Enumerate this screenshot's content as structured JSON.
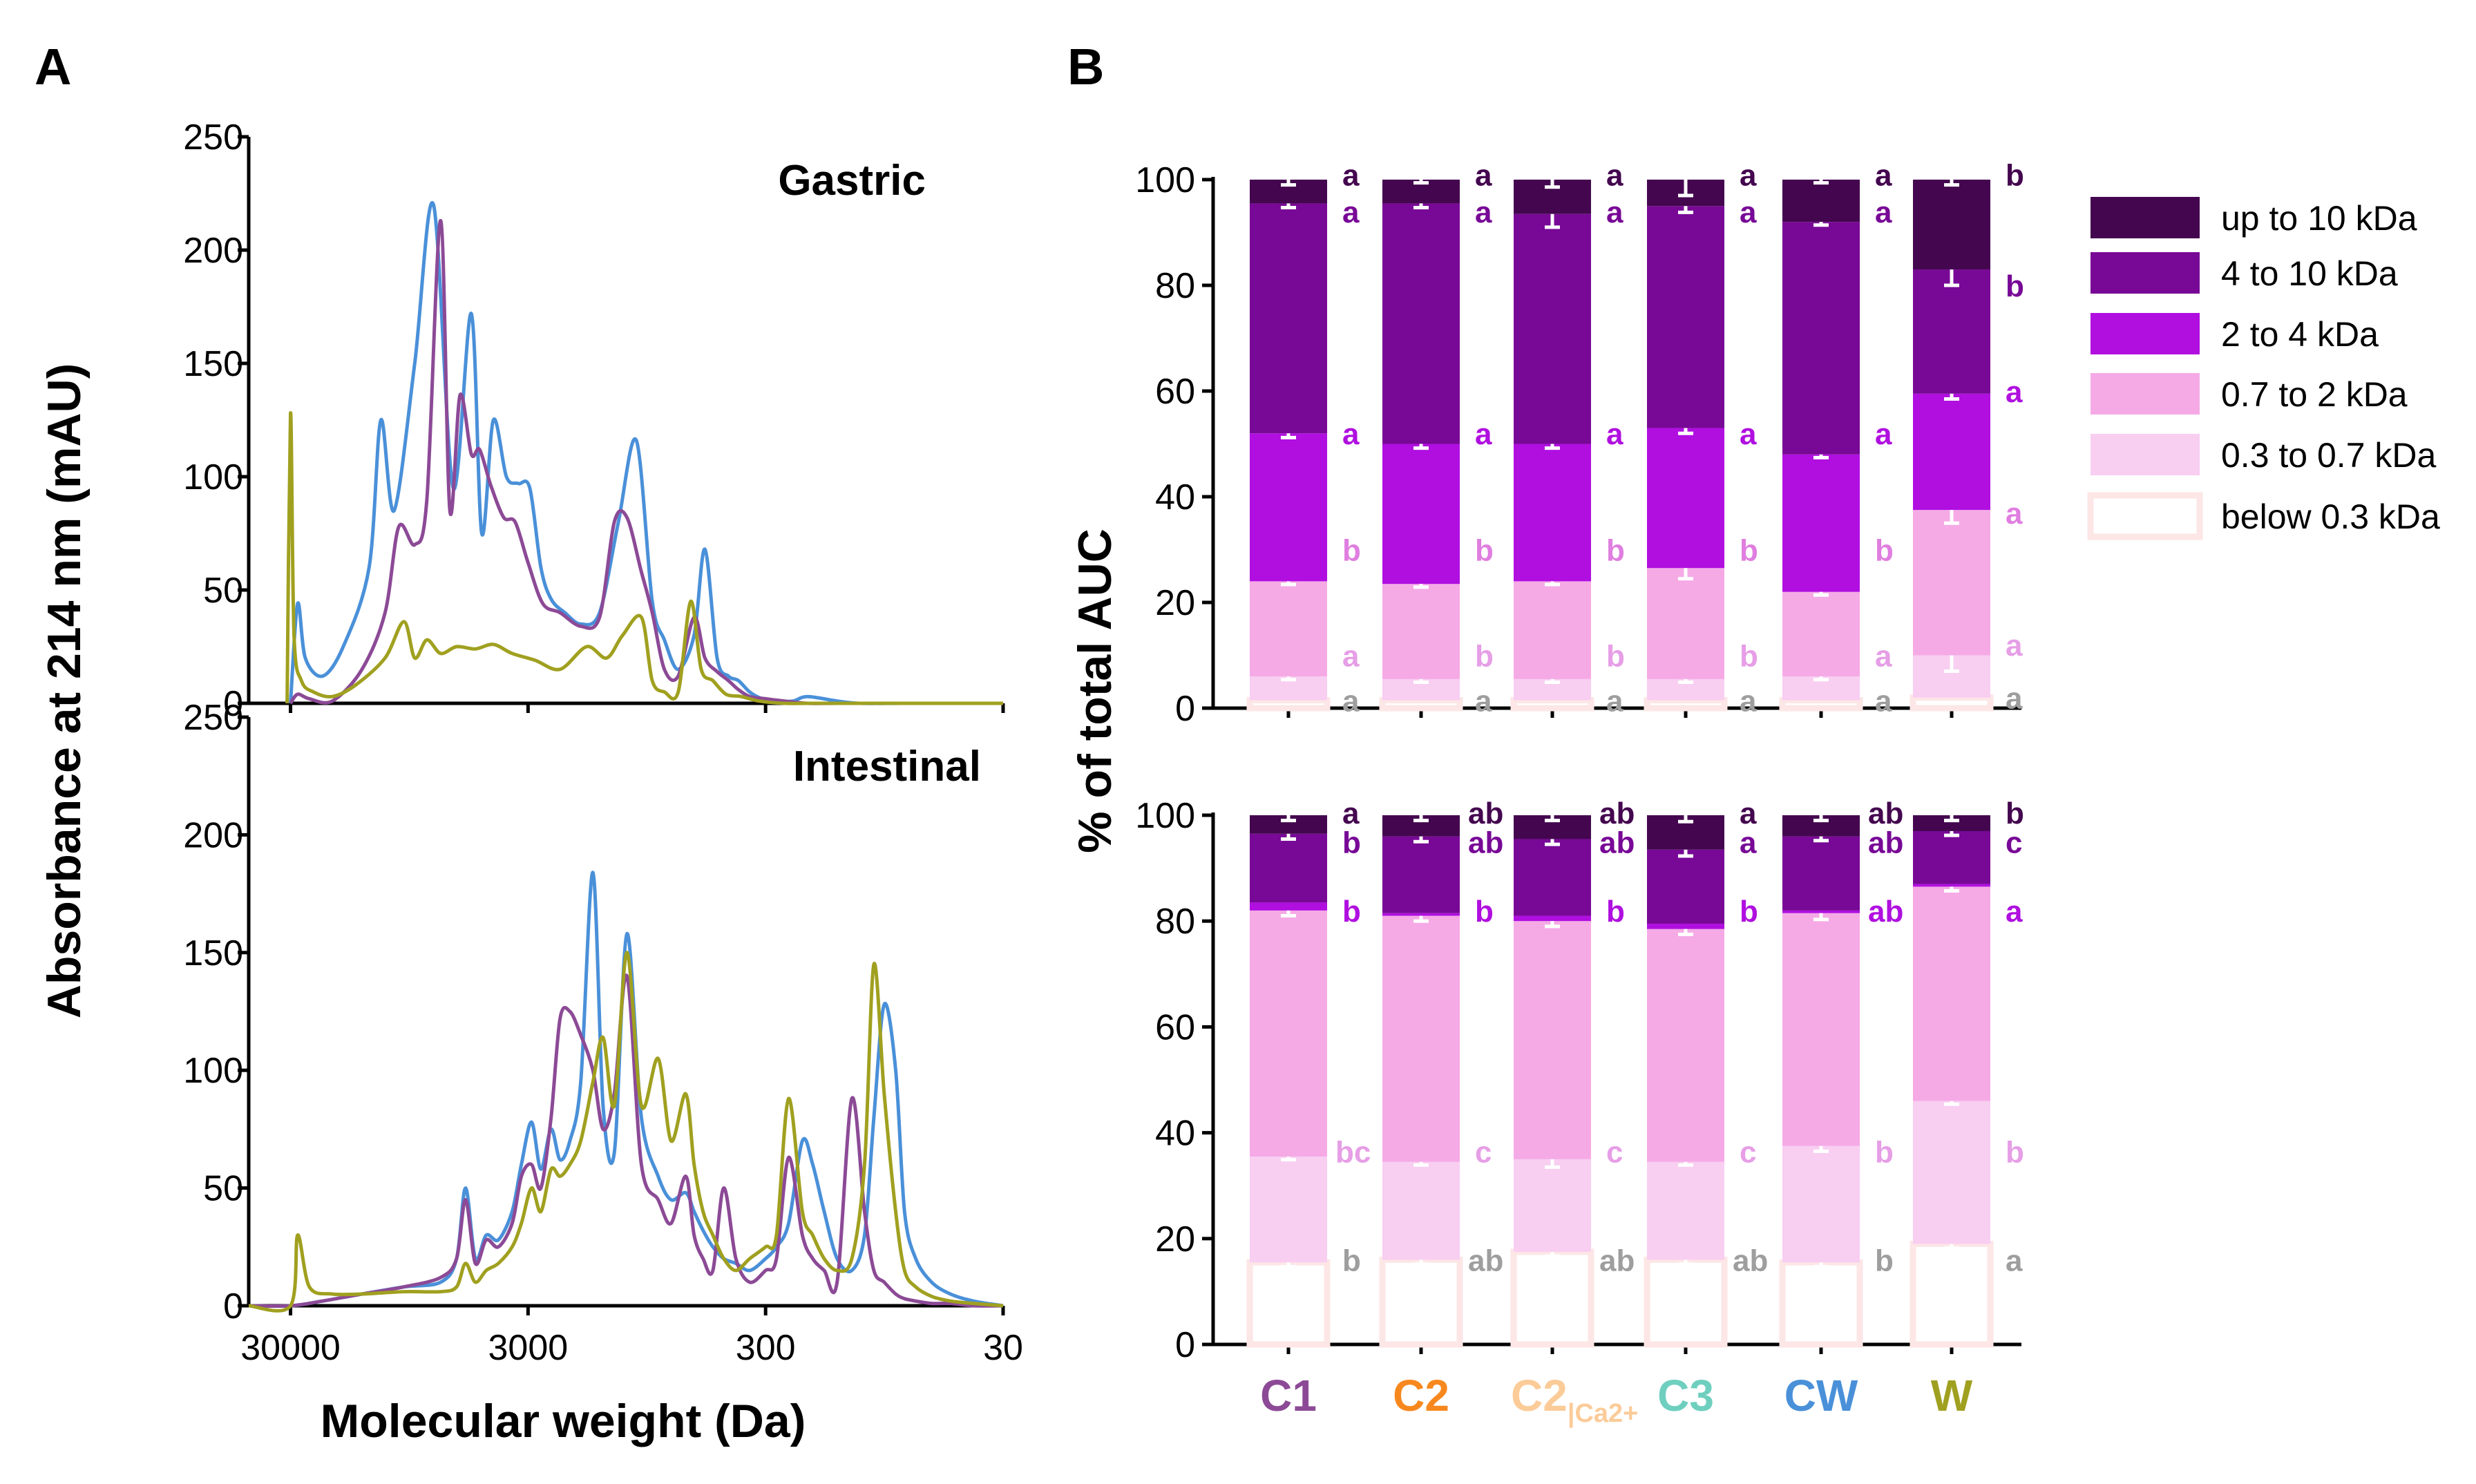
{
  "panels": {
    "a": "A",
    "b": "B"
  },
  "colors": {
    "C1": "#8c4a96",
    "C2": "#f7881e",
    "C2Ca": "#fbcb98",
    "C3": "#6fcfbf",
    "CW": "#4a90d9",
    "W": "#a0a020",
    "up10": "#44064f",
    "f4to10": "#780896",
    "f2to4": "#b00fe0",
    "f07to2": "#f5aae6",
    "f03to07": "#f8cef1",
    "below03": "#fde6e6",
    "sig_up10": "#44064f",
    "sig_4to10": "#780896",
    "sig_2to4": "#b00fe0",
    "sig_07to2": "#e07ee0",
    "sig_03to07": "#e69ee6",
    "sig_below": "#9e9e9e"
  },
  "chart_data": [
    {
      "type": "line",
      "title": "Gastric",
      "xlabel": "Molecular weight (Da)",
      "ylabel": "Absorbance at 214 nm (mAU)",
      "xscale": "log-reversed",
      "xlim": [
        45000,
        30
      ],
      "ylim": [
        0,
        250
      ],
      "yticks": [
        0,
        50,
        100,
        150,
        200,
        250
      ],
      "series": [
        {
          "name": "CW",
          "color_key": "CW",
          "x": [
            30000,
            28000,
            26000,
            22000,
            18000,
            14000,
            12500,
            11000,
            9000,
            7500,
            6200,
            5200,
            4700,
            4200,
            3700,
            3300,
            2950,
            2650,
            2400,
            2100,
            1800,
            1500,
            1250,
            1050,
            900,
            800,
            700,
            600,
            540,
            480,
            430,
            390,
            350,
            310,
            270,
            230,
            200,
            150,
            120,
            80,
            50,
            30
          ],
          "y": [
            0,
            44,
            20,
            12,
            25,
            60,
            125,
            85,
            150,
            220,
            95,
            172,
            75,
            125,
            100,
            97,
            95,
            60,
            46,
            40,
            35,
            40,
            80,
            116,
            45,
            28,
            15,
            30,
            68,
            20,
            12,
            10,
            5,
            2,
            1,
            1,
            3,
            1,
            0,
            0,
            0,
            0
          ]
        },
        {
          "name": "C1",
          "color_key": "C1",
          "x": [
            30000,
            28000,
            25000,
            20000,
            15000,
            12000,
            10500,
            9000,
            8000,
            7000,
            6400,
            5800,
            5200,
            4800,
            4300,
            3800,
            3400,
            3000,
            2600,
            2200,
            1800,
            1500,
            1300,
            1150,
            1000,
            900,
            800,
            700,
            600,
            540,
            480,
            430,
            390,
            350,
            300,
            250,
            200,
            150,
            100,
            50,
            30
          ],
          "y": [
            0,
            4,
            2,
            1,
            15,
            40,
            78,
            70,
            90,
            213,
            85,
            136,
            110,
            112,
            96,
            82,
            80,
            62,
            44,
            40,
            34,
            38,
            80,
            82,
            58,
            40,
            15,
            12,
            38,
            20,
            14,
            10,
            6,
            3,
            2,
            1,
            0,
            0,
            0,
            0,
            0
          ]
        },
        {
          "name": "W",
          "color_key": "W",
          "x": [
            31000,
            30000,
            29000,
            27000,
            24000,
            20000,
            16000,
            12000,
            10000,
            9000,
            8000,
            7000,
            6000,
            5000,
            4200,
            3500,
            2800,
            2200,
            1700,
            1400,
            1200,
            1000,
            900,
            800,
            700,
            620,
            560,
            500,
            440,
            380,
            320,
            250,
            200,
            150,
            100,
            50,
            30
          ],
          "y": [
            0,
            128,
            30,
            10,
            5,
            3,
            8,
            20,
            36,
            20,
            28,
            22,
            25,
            24,
            26,
            22,
            19,
            15,
            25,
            20,
            30,
            38,
            10,
            5,
            5,
            45,
            15,
            10,
            4,
            3,
            1,
            0,
            0,
            0,
            0,
            0,
            0
          ]
        }
      ]
    },
    {
      "type": "line",
      "title": "Intestinal",
      "xlabel": "Molecular weight (Da)",
      "ylabel": "Absorbance at 214 nm (mAU)",
      "xscale": "log-reversed",
      "xlim": [
        45000,
        30
      ],
      "ylim": [
        0,
        250
      ],
      "yticks": [
        0,
        50,
        100,
        150,
        200,
        250
      ],
      "xticks": [
        30000,
        3000,
        300,
        30
      ],
      "xticklabels": [
        "30000",
        "3000",
        "300",
        "30"
      ],
      "series": [
        {
          "name": "CW",
          "color_key": "CW",
          "x": [
            45000,
            30000,
            22000,
            15000,
            10000,
            7000,
            6000,
            5500,
            5000,
            4500,
            4000,
            3500,
            3200,
            2900,
            2650,
            2400,
            2200,
            2000,
            1800,
            1600,
            1450,
            1300,
            1150,
            1000,
            850,
            750,
            650,
            600,
            550,
            500,
            450,
            400,
            350,
            300,
            270,
            240,
            210,
            190,
            170,
            150,
            130,
            115,
            105,
            95,
            85,
            78,
            70,
            60,
            50,
            40,
            30
          ],
          "y": [
            0,
            0,
            2,
            5,
            8,
            10,
            20,
            50,
            20,
            30,
            28,
            40,
            60,
            78,
            58,
            75,
            62,
            70,
            95,
            184,
            85,
            65,
            158,
            80,
            55,
            45,
            48,
            40,
            32,
            25,
            20,
            18,
            15,
            20,
            25,
            35,
            70,
            60,
            40,
            20,
            15,
            30,
            80,
            128,
            100,
            40,
            20,
            10,
            5,
            2,
            0
          ]
        },
        {
          "name": "C1",
          "color_key": "C1",
          "x": [
            45000,
            30000,
            22000,
            15000,
            10000,
            7000,
            6000,
            5500,
            5000,
            4500,
            4000,
            3500,
            3200,
            2900,
            2650,
            2400,
            2200,
            2000,
            1800,
            1600,
            1450,
            1300,
            1150,
            1000,
            850,
            750,
            650,
            600,
            550,
            500,
            450,
            400,
            350,
            300,
            270,
            240,
            210,
            190,
            170,
            150,
            130,
            115,
            105,
            95,
            85,
            78,
            70,
            60,
            50,
            40,
            30
          ],
          "y": [
            0,
            0,
            2,
            5,
            8,
            12,
            20,
            45,
            18,
            28,
            25,
            35,
            55,
            60,
            50,
            80,
            122,
            125,
            115,
            100,
            75,
            90,
            140,
            60,
            45,
            35,
            55,
            30,
            20,
            15,
            50,
            20,
            10,
            15,
            20,
            63,
            30,
            20,
            15,
            10,
            88,
            40,
            15,
            10,
            5,
            3,
            2,
            1,
            1,
            0,
            0
          ]
        },
        {
          "name": "W",
          "color_key": "W",
          "x": [
            45000,
            30000,
            28000,
            25000,
            20000,
            15000,
            10000,
            7000,
            6000,
            5500,
            5000,
            4500,
            4000,
            3500,
            3200,
            2900,
            2650,
            2400,
            2200,
            2000,
            1800,
            1600,
            1450,
            1300,
            1150,
            1000,
            850,
            750,
            650,
            600,
            550,
            500,
            450,
            400,
            350,
            300,
            270,
            240,
            210,
            190,
            170,
            150,
            130,
            115,
            105,
            95,
            85,
            78,
            70,
            60,
            50,
            40,
            30
          ],
          "y": [
            0,
            0,
            30,
            8,
            5,
            5,
            6,
            6,
            8,
            18,
            10,
            15,
            18,
            25,
            35,
            50,
            40,
            58,
            55,
            60,
            70,
            95,
            114,
            85,
            150,
            85,
            105,
            70,
            90,
            60,
            40,
            30,
            20,
            15,
            20,
            25,
            30,
            88,
            40,
            30,
            20,
            15,
            20,
            60,
            145,
            90,
            40,
            15,
            8,
            4,
            2,
            1,
            0
          ]
        }
      ]
    },
    {
      "type": "stacked-bar",
      "ylabel": "% of total AUC",
      "ylim": [
        0,
        100
      ],
      "yticks": [
        0,
        20,
        40,
        60,
        80,
        100
      ],
      "categories": [
        "C1",
        "C2",
        "C2Ca",
        "C3",
        "CW",
        "W"
      ],
      "category_labels": [
        {
          "main": "C1",
          "sub": "",
          "color_key": "C1"
        },
        {
          "main": "C2",
          "sub": "",
          "color_key": "C2"
        },
        {
          "main": "C2",
          "sub": "|Ca2+",
          "color_key": "C2Ca"
        },
        {
          "main": "C3",
          "sub": "",
          "color_key": "C3"
        },
        {
          "main": "CW",
          "sub": "",
          "color_key": "CW"
        },
        {
          "main": "W",
          "sub": "",
          "color_key": "W"
        }
      ],
      "legend": [
        {
          "label": "up to 10 kDa",
          "color_key": "up10"
        },
        {
          "label": "4 to 10 kDa",
          "color_key": "f4to10"
        },
        {
          "label": "2 to 4 kDa",
          "color_key": "f2to4"
        },
        {
          "label": "0.7 to 2 kDa",
          "color_key": "f07to2"
        },
        {
          "label": "0.3 to 0.7 kDa",
          "color_key": "f03to07"
        },
        {
          "label": "below 0.3 kDa",
          "color_key": "below03"
        }
      ],
      "stack_tops": [
        [
          1.5,
          6,
          24,
          52,
          95.5,
          100
        ],
        [
          1.5,
          5.5,
          23.5,
          50,
          95.5,
          100
        ],
        [
          1.5,
          5.5,
          24,
          50,
          93.5,
          100
        ],
        [
          1.5,
          5.5,
          26.5,
          53,
          95,
          100
        ],
        [
          1.5,
          6,
          22,
          48,
          92,
          100
        ],
        [
          2,
          10,
          37.5,
          59.5,
          83,
          100
        ]
      ],
      "errors": [
        [
          0,
          0.6,
          0.6,
          0.8,
          0.8,
          1
        ],
        [
          0,
          0.6,
          0.6,
          0.8,
          0.8,
          0.6
        ],
        [
          0,
          0.6,
          0.6,
          0.8,
          2.5,
          1.4
        ],
        [
          0,
          0.6,
          2,
          1,
          1.2,
          3
        ],
        [
          0,
          0.6,
          0.6,
          0.6,
          0.6,
          0.6
        ],
        [
          0,
          3,
          2.5,
          1,
          3,
          1
        ]
      ],
      "significance": [
        [
          "a",
          "a",
          "b",
          "a",
          "a",
          "a"
        ],
        [
          "a",
          "b",
          "b",
          "a",
          "a",
          "a"
        ],
        [
          "a",
          "b",
          "b",
          "a",
          "a",
          "a"
        ],
        [
          "a",
          "b",
          "b",
          "a",
          "a",
          "a"
        ],
        [
          "a",
          "a",
          "b",
          "a",
          "a",
          "a"
        ],
        [
          "a",
          "a",
          "a",
          "a",
          "b",
          "b"
        ]
      ],
      "significance_y": [
        1.5,
        10,
        30,
        52,
        94,
        101
      ],
      "significance_y_w": [
        2,
        12,
        37,
        60,
        80,
        101
      ]
    },
    {
      "type": "stacked-bar",
      "ylabel": "% of total AUC",
      "ylim": [
        0,
        100
      ],
      "yticks": [
        0,
        20,
        40,
        60,
        80,
        100
      ],
      "categories": [
        "C1",
        "C2",
        "C2Ca",
        "C3",
        "CW",
        "W"
      ],
      "stack_tops": [
        [
          15.5,
          35.5,
          82,
          83.5,
          96.5,
          100
        ],
        [
          16,
          34.5,
          81,
          81.5,
          96,
          100
        ],
        [
          17.5,
          35,
          80,
          81,
          95.5,
          100
        ],
        [
          16,
          34.5,
          78.5,
          79.5,
          93.5,
          100
        ],
        [
          15.5,
          37.5,
          81.5,
          82,
          96,
          100
        ],
        [
          19,
          46,
          86.5,
          87,
          97,
          100
        ]
      ],
      "errors": [
        [
          0.8,
          0.6,
          1,
          0,
          1,
          1
        ],
        [
          0.8,
          0.6,
          1,
          0,
          1,
          1
        ],
        [
          0.8,
          1.5,
          1,
          0,
          1,
          1
        ],
        [
          0.8,
          0.6,
          1,
          0,
          1.2,
          1.2
        ],
        [
          0.8,
          1,
          1.2,
          0,
          0.8,
          1
        ],
        [
          0.8,
          0.6,
          0.8,
          0,
          0.8,
          1
        ]
      ],
      "significance": [
        [
          "b",
          "bc",
          "b",
          "b",
          "a"
        ],
        [
          "ab",
          "c",
          "b",
          "ab",
          "ab"
        ],
        [
          "ab",
          "c",
          "b",
          "ab",
          "ab"
        ],
        [
          "ab",
          "c",
          "b",
          "a",
          "a"
        ],
        [
          "b",
          "b",
          "ab",
          "ab",
          "ab"
        ],
        [
          "a",
          "b",
          "a",
          "c",
          "b"
        ]
      ],
      "significance_keys": [
        "sig_below",
        "sig_03to07",
        "sig_2to4",
        "sig_4to10",
        "sig_up10"
      ],
      "significance_y": [
        16,
        36.5,
        82,
        95,
        100.5
      ]
    }
  ],
  "labels": {
    "gastric": "Gastric",
    "intestinal": "Intestinal",
    "y_axis_left": "Absorbance at 214 nm (mAU)",
    "x_axis_left": "Molecular weight (Da)",
    "y_axis_right": "% of total AUC"
  }
}
